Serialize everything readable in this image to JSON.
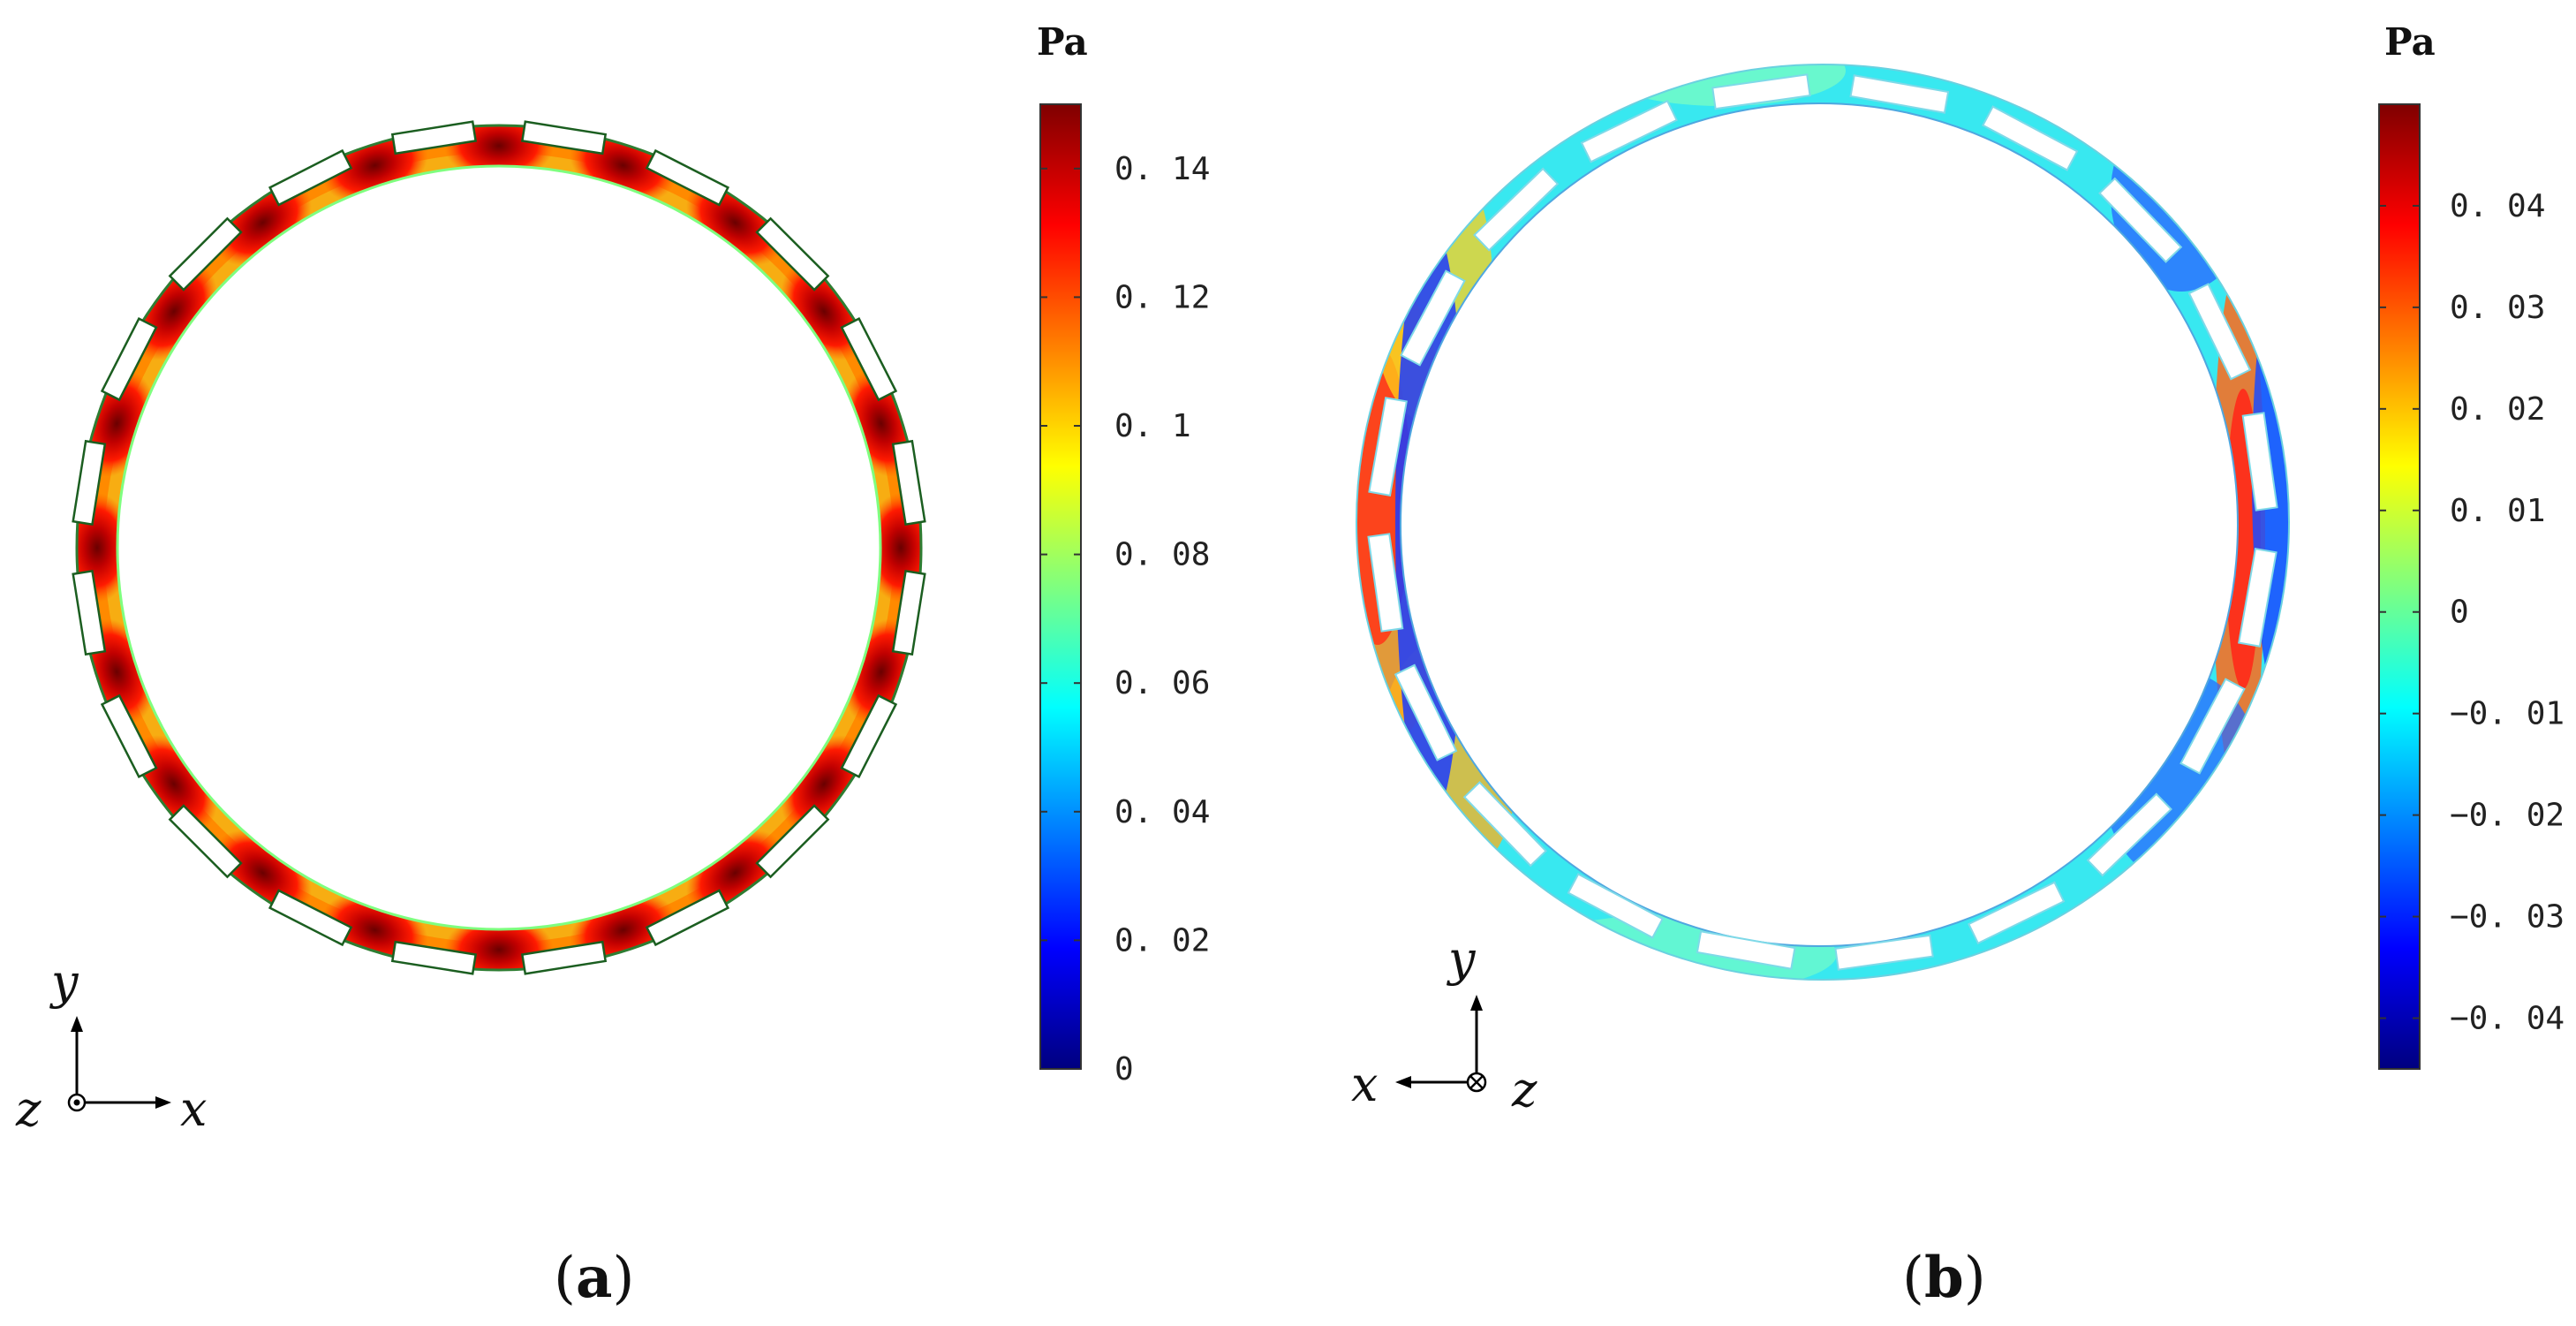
{
  "panels": [
    {
      "label_open": "(",
      "label_letter": "a",
      "label_close": ")",
      "colorbar": {
        "unit": "Pa",
        "min": 0,
        "max": 0.15,
        "ticks": [
          "0",
          "0. 02",
          "0. 04",
          "0. 06",
          "0. 08",
          "0. 1",
          "0. 12",
          "0. 14"
        ]
      },
      "axes": {
        "up": "y",
        "right": "x",
        "out": "z",
        "out_symbol": "dot"
      },
      "slots": 20
    },
    {
      "label_open": "(",
      "label_letter": "b",
      "label_close": ")",
      "colorbar": {
        "unit": "Pa",
        "min": -0.045,
        "max": 0.05,
        "ticks": [
          "−0. 04",
          "−0. 03",
          "−0. 02",
          "−0. 01",
          "0",
          "0. 01",
          "0. 02",
          "0. 03",
          "0. 04"
        ]
      },
      "axes": {
        "up": "y",
        "left": "x",
        "in": "z",
        "in_symbol": "cross"
      },
      "slots": 20
    }
  ],
  "colors": {
    "jet": [
      "#00007f",
      "#0000ff",
      "#007fff",
      "#00ffff",
      "#7fff7f",
      "#ffff00",
      "#ff7f00",
      "#ff0000",
      "#7f0000"
    ],
    "ring_a_base": "#f7ad12",
    "ring_b_base": "#38e8f0"
  }
}
